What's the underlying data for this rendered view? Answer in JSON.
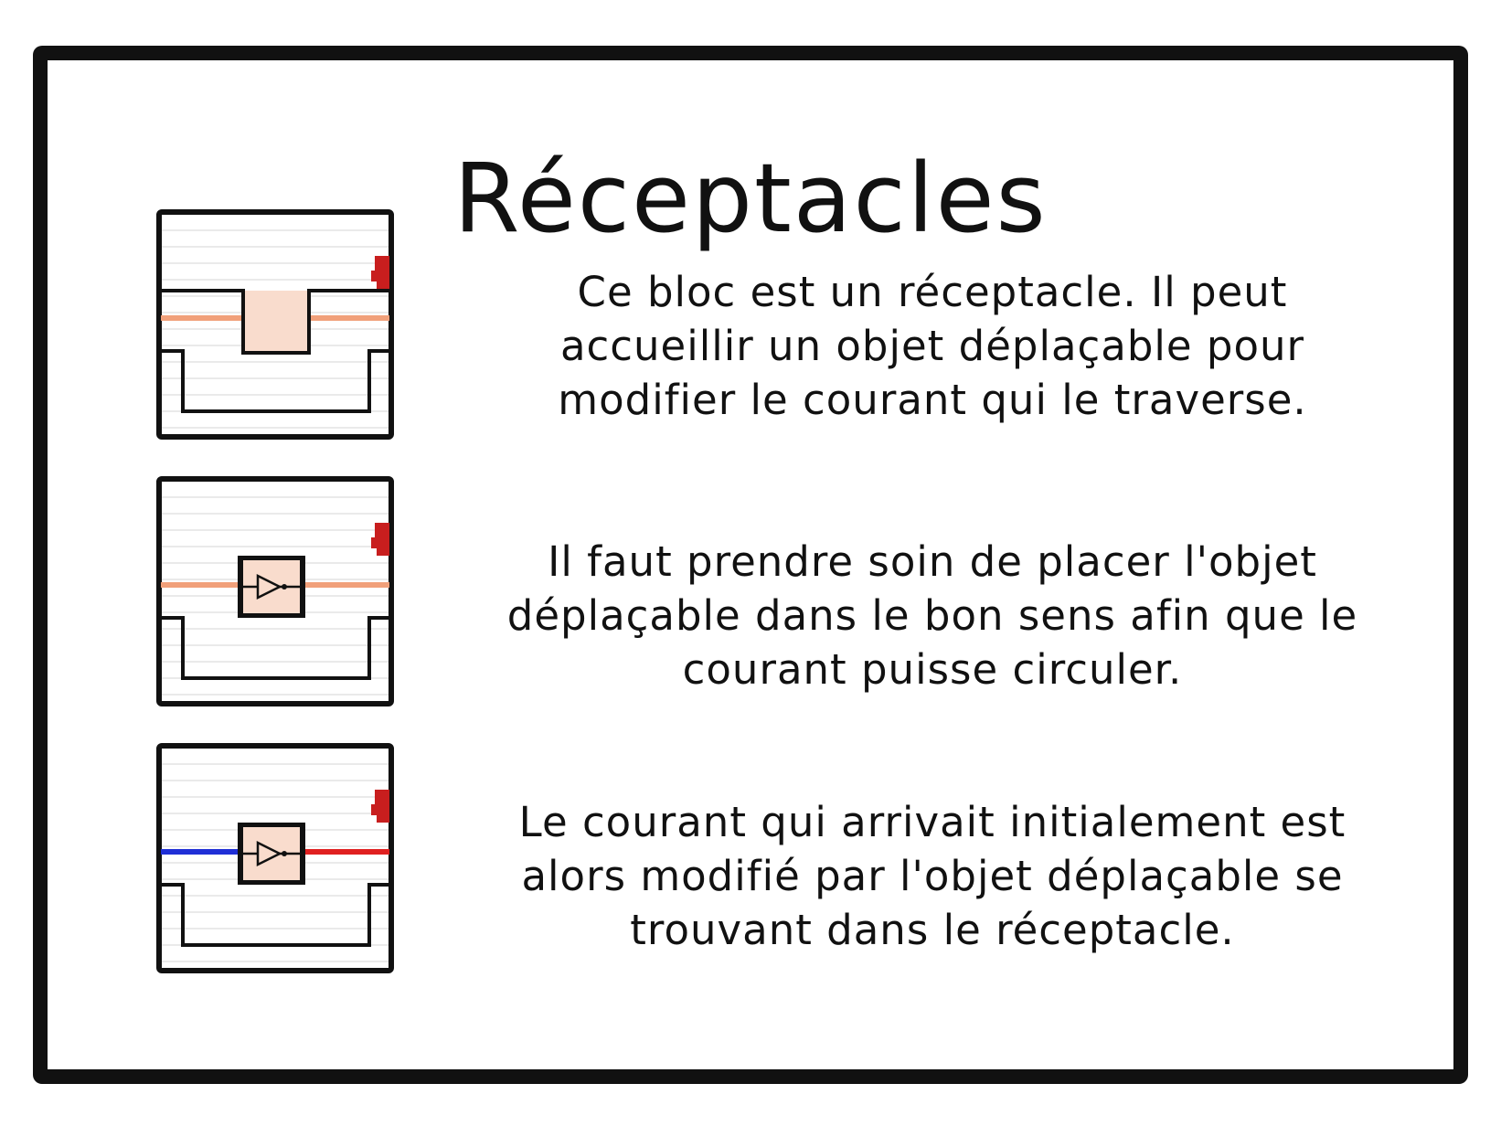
{
  "title": "Réceptacles",
  "colors": {
    "frame": "#111111",
    "current_orange": "#f1a07a",
    "current_blue": "#1f2fd6",
    "current_red": "#e02020",
    "receptacle_fill": "#f9dccd",
    "corner_mark": "#c81e1e"
  },
  "steps": [
    {
      "tile": {
        "state": "empty",
        "current_left": "orange",
        "current_right": "orange"
      },
      "lines": [
        "Ce bloc est un réceptacle. Il peut",
        "accueillir un objet déplaçable pour",
        "modifier le courant qui le traverse."
      ]
    },
    {
      "tile": {
        "state": "with-object",
        "current_left": "orange",
        "current_right": "orange"
      },
      "lines": [
        "Il faut prendre soin de placer l'objet",
        "déplaçable dans le bon sens afin que le",
        "courant puisse circuler."
      ]
    },
    {
      "tile": {
        "state": "with-object",
        "current_left": "blue",
        "current_right": "red"
      },
      "lines": [
        "Le courant qui arrivait initialement est",
        "alors modifié par l'objet déplaçable se",
        "trouvant dans le réceptacle."
      ]
    }
  ]
}
